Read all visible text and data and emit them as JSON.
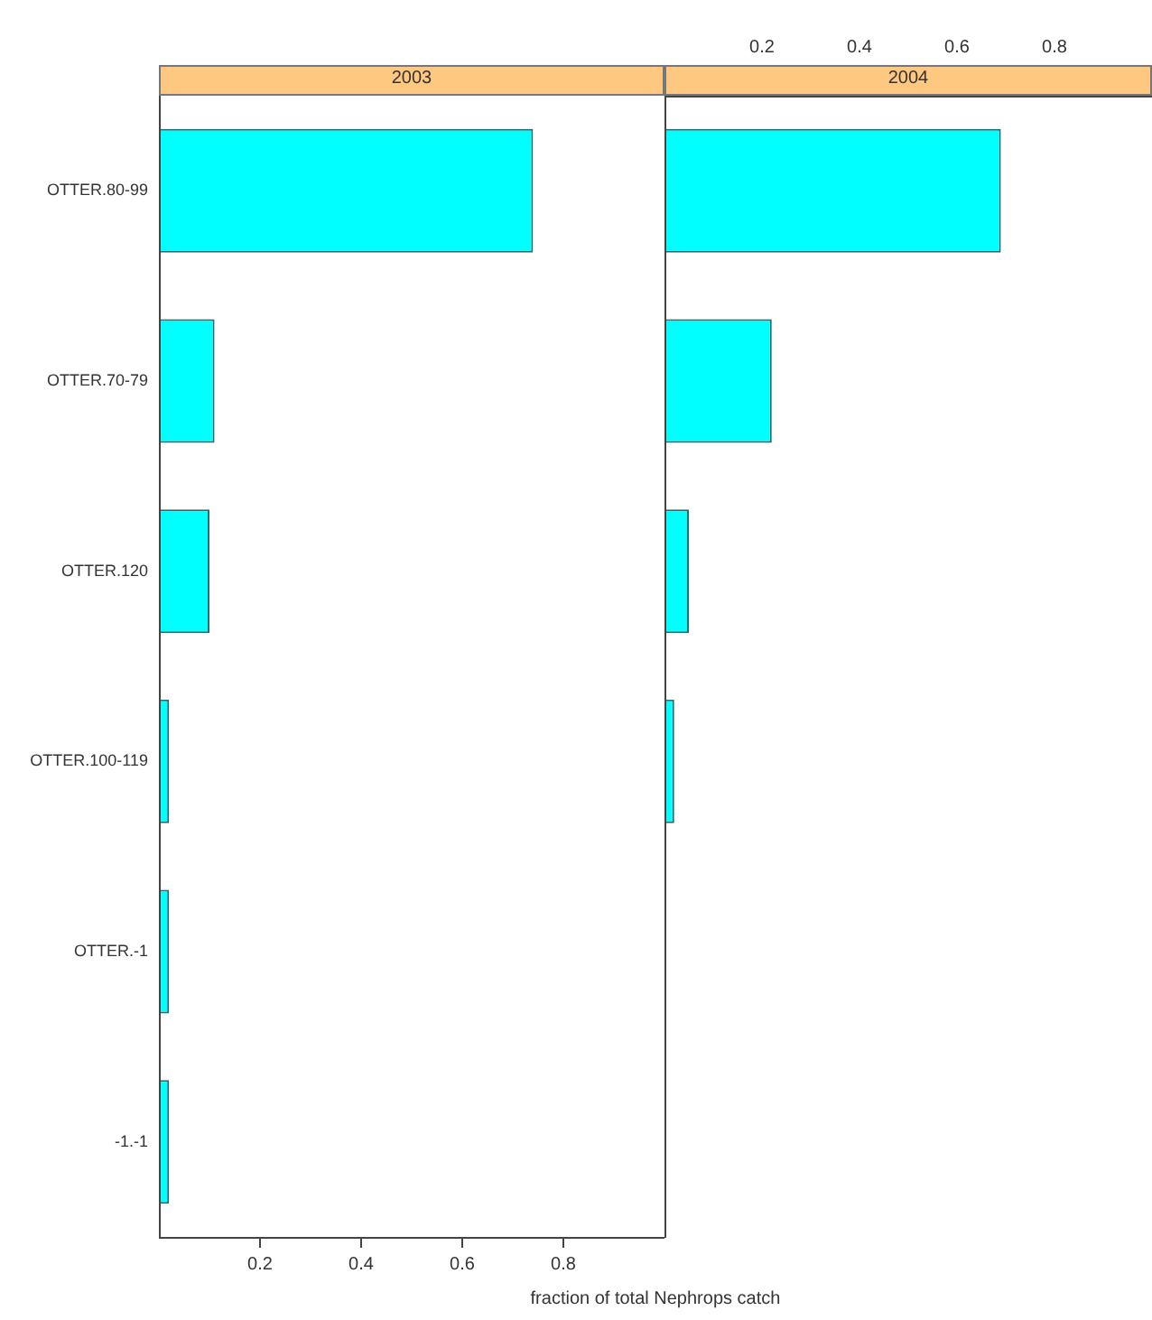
{
  "chart_data": [
    {
      "type": "bar",
      "orientation": "horizontal",
      "title": "2003",
      "xlabel": "fraction of total Nephrops catch",
      "categories": [
        "OTTER.80-99",
        "OTTER.70-79",
        "OTTER.120",
        "OTTER.100-119",
        "OTTER.-1",
        "-1.-1"
      ],
      "values": [
        0.74,
        0.11,
        0.1,
        0.02,
        0.02,
        0.02
      ],
      "color": "#00ffff",
      "xlim": [
        0,
        1
      ],
      "xticks": [
        0.2,
        0.4,
        0.6,
        0.8
      ]
    },
    {
      "type": "bar",
      "orientation": "horizontal",
      "title": "2004",
      "categories": [
        null,
        null,
        null,
        null,
        null,
        null
      ],
      "values": [
        0.69,
        0.22,
        0.05,
        0.02,
        null,
        null
      ],
      "color": "#00ffff",
      "xlim": [
        0,
        1
      ],
      "xticks": [
        0.2,
        0.4,
        0.6,
        0.8
      ],
      "tick_labels": "x"
    }
  ]
}
